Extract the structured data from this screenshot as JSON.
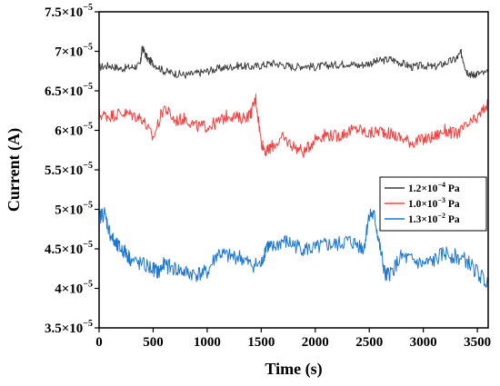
{
  "chart_data": {
    "type": "line",
    "title": "",
    "xlabel": "Time (s)",
    "ylabel": "Current (A)",
    "xlim": [
      0,
      3600
    ],
    "ylim": [
      3.5e-05,
      7.5e-05
    ],
    "grid": false,
    "legend_position": "right",
    "x_ticks": [
      {
        "value": 0,
        "label": "0"
      },
      {
        "value": 500,
        "label": "500"
      },
      {
        "value": 1000,
        "label": "1000"
      },
      {
        "value": 1500,
        "label": "1500"
      },
      {
        "value": 2000,
        "label": "2000"
      },
      {
        "value": 2500,
        "label": "2500"
      },
      {
        "value": 3000,
        "label": "3000"
      },
      {
        "value": 3500,
        "label": "3500"
      }
    ],
    "y_ticks": [
      {
        "value": 3.5e-05,
        "mantissa": "3.5",
        "exp": "−5"
      },
      {
        "value": 4e-05,
        "mantissa": "4",
        "exp": "−5"
      },
      {
        "value": 4.5e-05,
        "mantissa": "4.5",
        "exp": "−5"
      },
      {
        "value": 5e-05,
        "mantissa": "5",
        "exp": "−5"
      },
      {
        "value": 5.5e-05,
        "mantissa": "5.5",
        "exp": "−5"
      },
      {
        "value": 6e-05,
        "mantissa": "6",
        "exp": "−5"
      },
      {
        "value": 6.5e-05,
        "mantissa": "6.5",
        "exp": "−5"
      },
      {
        "value": 7e-05,
        "mantissa": "7",
        "exp": "−5"
      },
      {
        "value": 7.5e-05,
        "mantissa": "7.5",
        "exp": "−5"
      }
    ],
    "series": [
      {
        "name": "1.2×10⁻⁴ Pa",
        "legend_mantissa": "1.2",
        "legend_exp": "−4",
        "legend_unit": "Pa",
        "color": "#3d3d3d",
        "x": [
          0,
          100,
          200,
          300,
          380,
          400,
          450,
          500,
          600,
          700,
          800,
          900,
          1000,
          1100,
          1200,
          1300,
          1400,
          1500,
          1600,
          1700,
          1800,
          1900,
          2000,
          2100,
          2200,
          2300,
          2400,
          2500,
          2600,
          2700,
          2800,
          2900,
          3000,
          3100,
          3200,
          3300,
          3350,
          3400,
          3450,
          3500,
          3600
        ],
        "y": [
          6.8e-05,
          6.82e-05,
          6.78e-05,
          6.8e-05,
          6.82e-05,
          7.05e-05,
          6.9e-05,
          6.85e-05,
          6.75e-05,
          6.72e-05,
          6.7e-05,
          6.72e-05,
          6.75e-05,
          6.78e-05,
          6.8e-05,
          6.82e-05,
          6.8e-05,
          6.82e-05,
          6.85e-05,
          6.83e-05,
          6.8e-05,
          6.82e-05,
          6.8e-05,
          6.82e-05,
          6.83e-05,
          6.85e-05,
          6.82e-05,
          6.85e-05,
          6.88e-05,
          6.9e-05,
          6.85e-05,
          6.8e-05,
          6.82e-05,
          6.8e-05,
          6.85e-05,
          6.9e-05,
          6.98e-05,
          6.75e-05,
          6.7e-05,
          6.72e-05,
          6.72e-05
        ]
      },
      {
        "name": "1.0×10⁻³ Pa",
        "legend_mantissa": "1.0",
        "legend_exp": "−3",
        "legend_unit": "Pa",
        "color": "#ff3b3b",
        "x": [
          0,
          100,
          200,
          300,
          400,
          500,
          600,
          700,
          800,
          900,
          1000,
          1100,
          1200,
          1300,
          1400,
          1450,
          1500,
          1550,
          1600,
          1700,
          1800,
          1900,
          2000,
          2100,
          2200,
          2300,
          2400,
          2500,
          2600,
          2700,
          2800,
          2900,
          3000,
          3100,
          3200,
          3300,
          3400,
          3500,
          3600
        ],
        "y": [
          6.2e-05,
          6.18e-05,
          6.22e-05,
          6.2e-05,
          6.15e-05,
          5.9e-05,
          6.3e-05,
          6.12e-05,
          6.15e-05,
          6.05e-05,
          6.05e-05,
          6.1e-05,
          6.2e-05,
          6.15e-05,
          6.2e-05,
          6.4e-05,
          5.85e-05,
          5.72e-05,
          5.8e-05,
          5.9e-05,
          5.8e-05,
          5.72e-05,
          5.9e-05,
          5.95e-05,
          5.92e-05,
          5.98e-05,
          6.02e-05,
          5.95e-05,
          6e-05,
          5.95e-05,
          5.9e-05,
          5.85e-05,
          5.88e-05,
          5.92e-05,
          6e-05,
          5.95e-05,
          6.05e-05,
          6.15e-05,
          6.35e-05
        ]
      },
      {
        "name": "1.3×10⁻² Pa",
        "legend_mantissa": "1.3",
        "legend_exp": "−2",
        "legend_unit": "Pa",
        "color": "#1f77d4",
        "x": [
          0,
          50,
          100,
          150,
          200,
          250,
          300,
          400,
          500,
          550,
          600,
          700,
          800,
          900,
          1000,
          1100,
          1200,
          1300,
          1400,
          1500,
          1550,
          1600,
          1700,
          1800,
          1900,
          2000,
          2100,
          2200,
          2300,
          2400,
          2450,
          2500,
          2550,
          2600,
          2650,
          2700,
          2800,
          2900,
          3000,
          3100,
          3200,
          3300,
          3400,
          3500,
          3600
        ],
        "y": [
          4.9e-05,
          4.95e-05,
          4.7e-05,
          4.55e-05,
          4.5e-05,
          4.45e-05,
          4.35e-05,
          4.3e-05,
          4.25e-05,
          4.2e-05,
          4.3e-05,
          4.25e-05,
          4.2e-05,
          4.18e-05,
          4.2e-05,
          4.45e-05,
          4.4e-05,
          4.4e-05,
          4.3e-05,
          4.3e-05,
          4.55e-05,
          4.5e-05,
          4.6e-05,
          4.55e-05,
          4.5e-05,
          4.5e-05,
          4.55e-05,
          4.55e-05,
          4.6e-05,
          4.55e-05,
          4.5e-05,
          4.95e-05,
          4.9e-05,
          4.5e-05,
          4.15e-05,
          4.2e-05,
          4.4e-05,
          4.35e-05,
          4.3e-05,
          4.35e-05,
          4.45e-05,
          4.4e-05,
          4.35e-05,
          4.2e-05,
          4.05e-05
        ]
      }
    ]
  }
}
